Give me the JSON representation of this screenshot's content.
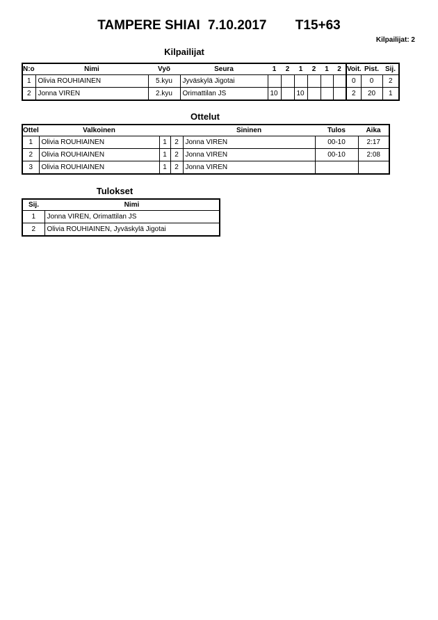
{
  "title": {
    "event": "TAMPERE SHIAI",
    "date": "7.10.2017",
    "category": "T15+63"
  },
  "competitor_count": "Kilpailijat: 2",
  "kilpailijat": {
    "heading": "Kilpailijat",
    "headers": [
      "N:o",
      "Nimi",
      "Vyö",
      "Seura",
      "1",
      "2",
      "1",
      "2",
      "1",
      "2",
      "Voit.",
      "Pist.",
      "Sij."
    ],
    "rows": [
      [
        "1",
        "Olivia ROUHIAINEN",
        "5.kyu",
        "Jyväskylä Jigotai",
        "",
        "",
        "",
        "",
        "",
        "",
        "0",
        "0",
        "2"
      ],
      [
        "2",
        "Jonna VIREN",
        "2.kyu",
        "Orimattilan JS",
        "10",
        "",
        "10",
        "",
        "",
        "",
        "2",
        "20",
        "1"
      ]
    ]
  },
  "ottelut": {
    "heading": "Ottelut",
    "headers": [
      "Ottelu",
      "Valkoinen",
      "",
      "",
      "Sininen",
      "Tulos",
      "Aika"
    ],
    "rows": [
      [
        "1",
        "Olivia ROUHIAINEN",
        "1",
        "2",
        "Jonna VIREN",
        "00-10",
        "2:17"
      ],
      [
        "2",
        "Olivia ROUHIAINEN",
        "1",
        "2",
        "Jonna VIREN",
        "00-10",
        "2:08"
      ],
      [
        "3",
        "Olivia ROUHIAINEN",
        "1",
        "2",
        "Jonna VIREN",
        "",
        ""
      ]
    ]
  },
  "tulokset": {
    "heading": "Tulokset",
    "headers": [
      "Sij.",
      "Nimi"
    ],
    "rows": [
      [
        "1",
        "Jonna VIREN, Orimattilan JS"
      ],
      [
        "2",
        "Olivia ROUHIAINEN, Jyväskylä Jigotai"
      ]
    ]
  }
}
